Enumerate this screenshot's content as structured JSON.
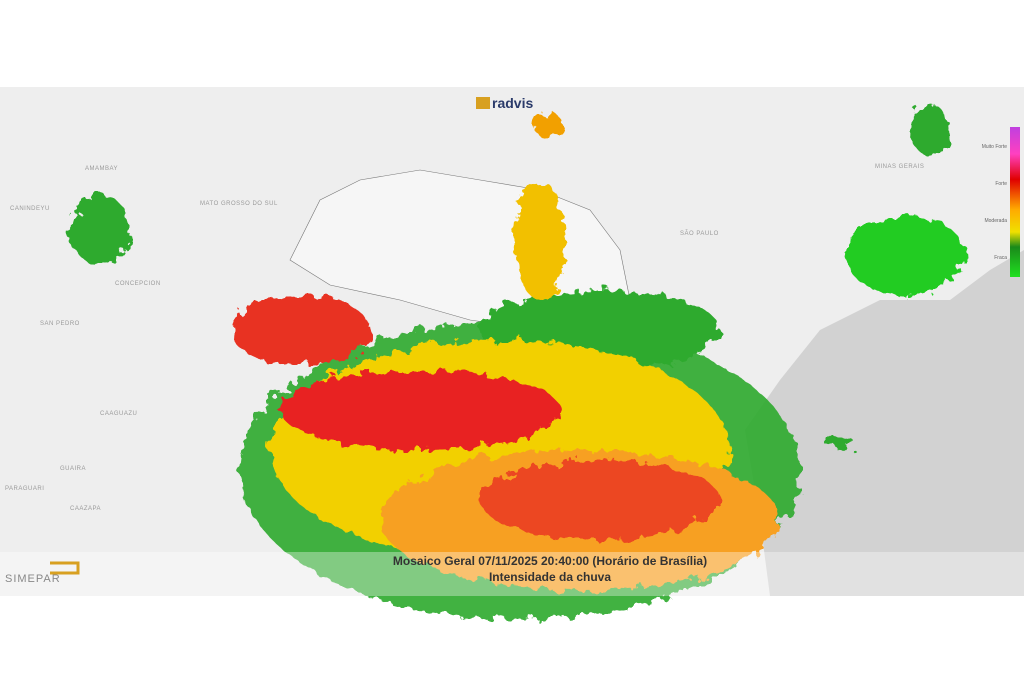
{
  "header": {
    "logo": "radvis"
  },
  "caption": {
    "title": "Mosaico Geral 07/11/2025 20:40:00 (Horário de Brasília)",
    "subtitle": "Intensidade da chuva"
  },
  "footer": {
    "logo": "SIMEPAR"
  },
  "legend": {
    "labels": [
      "Muito Forte",
      "Forte",
      "Moderada",
      "Fraca"
    ]
  },
  "map_labels": [
    "MATO GROSSO DO SUL",
    "SÃO PAULO",
    "MINAS GERAIS",
    "SAN PEDRO",
    "CAAGUAZU",
    "CONCEPCION",
    "CANINDEYU",
    "GUAIRA",
    "PARAGUARI",
    "CAAZAPA",
    "AMAMBAY"
  ]
}
